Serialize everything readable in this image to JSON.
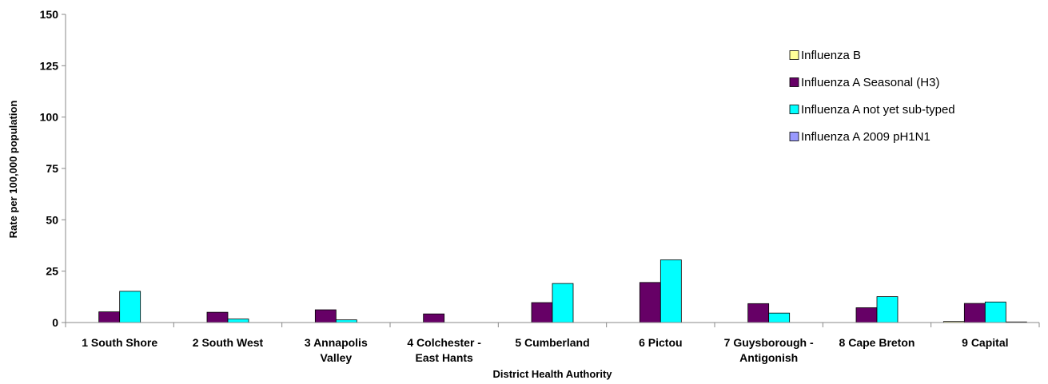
{
  "chart_data": {
    "type": "bar",
    "title": "",
    "xlabel": "District Health Authority",
    "ylabel": "Rate per 100,000 population",
    "ylim": [
      0,
      150
    ],
    "yticks": [
      "0",
      "25",
      "50",
      "75",
      "100",
      "125",
      "150"
    ],
    "categories": [
      [
        "1 South Shore"
      ],
      [
        "2 South West"
      ],
      [
        "3 Annapolis",
        "Valley"
      ],
      [
        "4 Colchester -",
        "East Hants"
      ],
      [
        "5 Cumberland"
      ],
      [
        "6 Pictou"
      ],
      [
        "7 Guysborough -",
        "Antigonish"
      ],
      [
        "8 Cape Breton"
      ],
      [
        "9 Capital"
      ]
    ],
    "series": [
      {
        "name": "Influenza B",
        "color": "#ffff99",
        "values": [
          0,
          0,
          0,
          0,
          0,
          0,
          0,
          0,
          0.5
        ]
      },
      {
        "name": "Influenza A Seasonal (H3)",
        "color": "#660066",
        "values": [
          5.2,
          5,
          6.2,
          4.2,
          9.7,
          19.5,
          9.2,
          7.2,
          9.3
        ]
      },
      {
        "name": "Influenza A not yet sub-typed",
        "color": "#00ffff",
        "values": [
          15.2,
          1.7,
          1.3,
          0,
          19,
          30.5,
          4.6,
          12.6,
          10
        ]
      },
      {
        "name": "Influenza A 2009 pH1N1",
        "color": "#9999ff",
        "values": [
          0,
          0,
          0,
          0,
          0,
          0,
          0,
          0,
          0.3
        ]
      }
    ],
    "legend_position": "right",
    "grid": false
  }
}
